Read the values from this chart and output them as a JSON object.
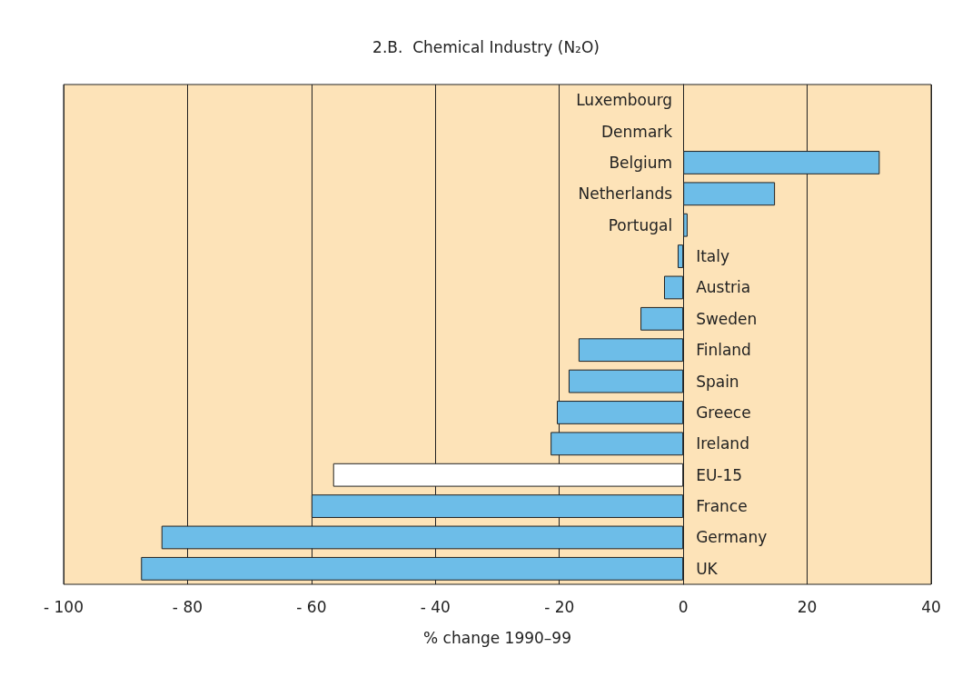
{
  "chart_data": {
    "type": "bar",
    "orientation": "horizontal",
    "title": "2.B.  Chemical Industry (N₂O)",
    "xlabel": "% change 1990–99",
    "categories": [
      "Luxembourg",
      "Denmark",
      "Belgium",
      "Netherlands",
      "Portugal",
      "Italy",
      "Austria",
      "Sweden",
      "Finland",
      "Spain",
      "Greece",
      "Ireland",
      "EU-15",
      "France",
      "Germany",
      "UK"
    ],
    "values": [
      null,
      null,
      31.7,
      14.8,
      0.7,
      -0.9,
      -3.1,
      -6.9,
      -16.9,
      -18.5,
      -20.4,
      -21.4,
      -56.5,
      -60,
      -84.2,
      -87.5
    ],
    "colors": [
      "#6dbde8",
      "#6dbde8",
      "#6dbde8",
      "#6dbde8",
      "#6dbde8",
      "#6dbde8",
      "#6dbde8",
      "#6dbde8",
      "#6dbde8",
      "#6dbde8",
      "#6dbde8",
      "#6dbde8",
      "#ffffff",
      "#6dbde8",
      "#6dbde8",
      "#6dbde8"
    ],
    "xlim": [
      -100,
      40
    ],
    "xticks": [
      {
        "value": -100,
        "label": "- 100"
      },
      {
        "value": -80,
        "label": "- 80"
      },
      {
        "value": -60,
        "label": "- 60"
      },
      {
        "value": -40,
        "label": "- 40"
      },
      {
        "value": -20,
        "label": "- 20"
      },
      0,
      20,
      40
    ],
    "grid": "x"
  }
}
